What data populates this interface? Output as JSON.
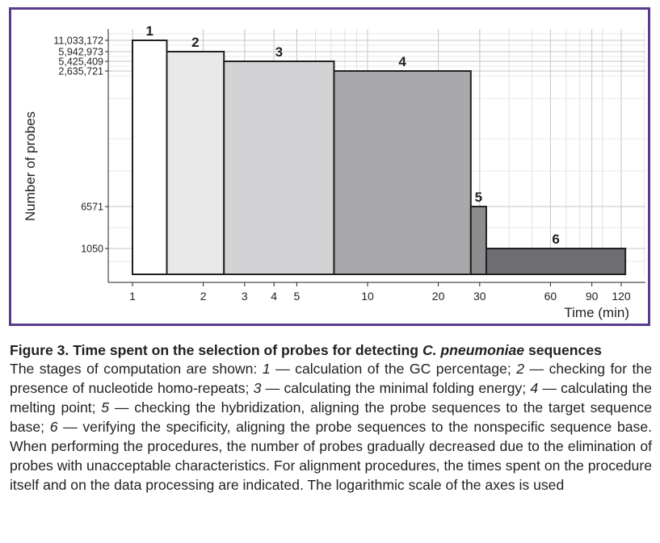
{
  "chart_data": {
    "type": "bar",
    "subtype": "step-histogram",
    "xlabel": "Time (min)",
    "ylabel": "Number of probes",
    "x_scale": "log",
    "y_scale": "log",
    "xlim": [
      0.75,
      180
    ],
    "x_ticks": [
      1,
      2,
      3,
      4,
      5,
      10,
      20,
      30,
      60,
      90,
      120
    ],
    "y_ticks": [
      1050,
      6571,
      2635721,
      5425409,
      5942973,
      11033172
    ],
    "y_tick_labels": [
      "1050",
      "6571",
      "2,635,721",
      "5,425,409",
      "5,942,973",
      "11,033,172"
    ],
    "grid": true,
    "bars": [
      {
        "label": "1",
        "x_start": 1,
        "x_end": 1.4,
        "value": 11033172,
        "color": "#ffffff"
      },
      {
        "label": "2",
        "x_start": 1.4,
        "x_end": 2.45,
        "value": 5942973,
        "color": "#e8e8e9"
      },
      {
        "label": "3",
        "x_start": 2.45,
        "x_end": 7.2,
        "value": 5425409,
        "color": "#d3d3d5"
      },
      {
        "label": "4",
        "x_start": 7.2,
        "x_end": 27.5,
        "value": 2635721,
        "color": "#a9a9ac"
      },
      {
        "label": "5",
        "x_start": 27.5,
        "x_end": 32,
        "value": 6571,
        "color": "#8d8d90"
      },
      {
        "label": "6",
        "x_start": 32,
        "x_end": 125,
        "value": 1050,
        "color": "#6e6e72"
      }
    ]
  },
  "caption": {
    "title_prefix": "Figure 3. Time spent on the selection of probes for detecting ",
    "title_species": "C. pneumoniae",
    "title_suffix": "sequences",
    "body": [
      {
        "t": "The stages of computation are shown: ",
        "i": false
      },
      {
        "t": "1",
        "i": true
      },
      {
        "t": " — calculation of the GC percentage; ",
        "i": false
      },
      {
        "t": "2",
        "i": true
      },
      {
        "t": " — checking for the presence of nucleotide homo-repeats; ",
        "i": false
      },
      {
        "t": "3",
        "i": true
      },
      {
        "t": " — calculating the minimal folding energy; ",
        "i": false
      },
      {
        "t": "4",
        "i": true
      },
      {
        "t": " — calculating the melting point; ",
        "i": false
      },
      {
        "t": "5",
        "i": true
      },
      {
        "t": " — checking the hybridization, aligning the probe sequences to the target sequence base; ",
        "i": false
      },
      {
        "t": "6",
        "i": true
      },
      {
        "t": " — verifying the specificity, aligning the probe sequences to the nonspecific sequence base. When performing the procedures, the number of probes gradually decreased due to the elimination of probes with unacceptable characteristics. For alignment procedures, the times spent on the procedure itself and on the data processing are indicated. The logarithmic scale of the axes is used",
        "i": false
      }
    ]
  }
}
